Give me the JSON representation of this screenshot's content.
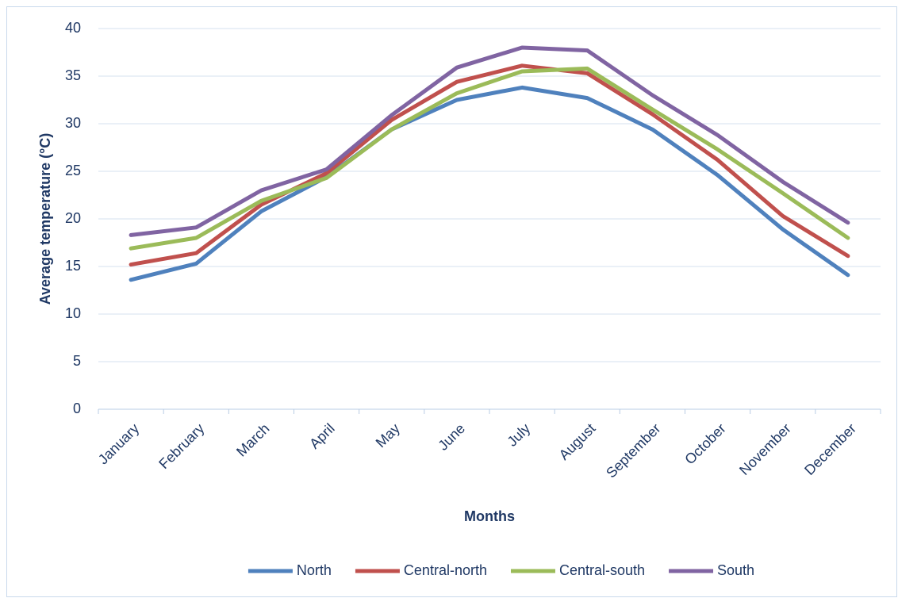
{
  "chart_data": {
    "type": "line",
    "xlabel": "Months",
    "ylabel": "Average temperature (°C)",
    "categories": [
      "January",
      "February",
      "March",
      "April",
      "May",
      "June",
      "July",
      "August",
      "September",
      "October",
      "November",
      "December"
    ],
    "series": [
      {
        "name": "North",
        "color": "#4f81bd",
        "values": [
          13.6,
          15.3,
          20.8,
          24.4,
          29.4,
          32.5,
          33.8,
          32.7,
          29.4,
          24.6,
          18.9,
          14.1
        ]
      },
      {
        "name": "Central-north",
        "color": "#c0504d",
        "values": [
          15.2,
          16.4,
          21.5,
          24.8,
          30.4,
          34.4,
          36.1,
          35.3,
          31.0,
          26.2,
          20.3,
          16.1
        ]
      },
      {
        "name": "Central-south",
        "color": "#9bbb59",
        "values": [
          16.9,
          18.0,
          21.9,
          24.3,
          29.4,
          33.2,
          35.5,
          35.8,
          31.5,
          27.3,
          22.7,
          18.0
        ]
      },
      {
        "name": "South",
        "color": "#8064a2",
        "values": [
          18.3,
          19.1,
          23.0,
          25.2,
          30.9,
          35.9,
          38.0,
          37.7,
          33.0,
          28.8,
          23.9,
          19.6
        ]
      }
    ],
    "ylim": [
      0,
      40
    ],
    "yticks": [
      0,
      5,
      10,
      15,
      20,
      25,
      30,
      35,
      40
    ],
    "grid": true,
    "legend": "bottom"
  }
}
